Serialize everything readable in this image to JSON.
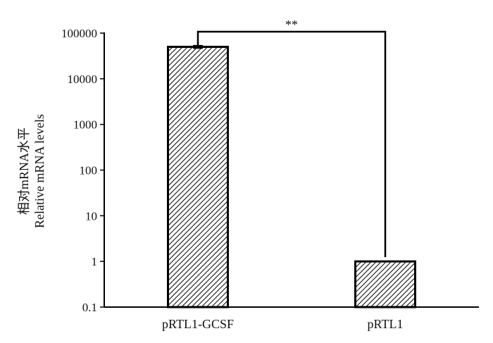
{
  "chart_data": {
    "type": "bar",
    "categories": [
      "pRTL1-GCSF",
      "pRTL1"
    ],
    "values": [
      50000,
      1
    ],
    "errors": [
      3000,
      0
    ],
    "yscale": "log",
    "ylim": [
      0.1,
      100000
    ],
    "yticks": [
      0.1,
      1,
      10,
      100,
      1000,
      10000,
      100000
    ],
    "ytick_labels": [
      "0.1",
      "1",
      "10",
      "100",
      "1000",
      "10000",
      "100000"
    ],
    "ylabel_lines": [
      "相对mRNA水平",
      "Relative mRNA levels"
    ],
    "xlabel": "",
    "title": "",
    "significance": "**",
    "grid": false,
    "legend": "none",
    "bar_fill": "diagonal-hatch",
    "colors": {
      "axis": "#000000",
      "hatch": "#000000",
      "background": "#ffffff"
    }
  }
}
